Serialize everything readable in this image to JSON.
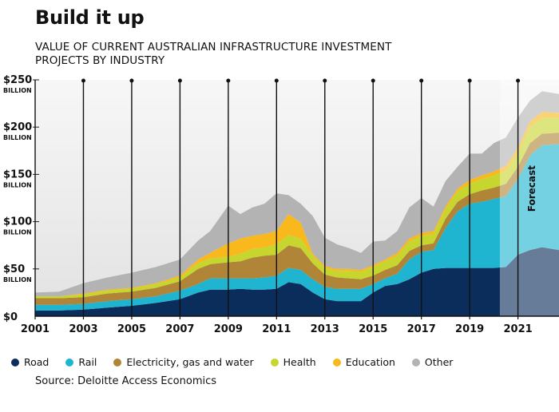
{
  "chart_data": {
    "type": "area",
    "stacked": true,
    "title": "Build it up",
    "subtitle": "VALUE OF CURRENT AUSTRALIAN INFRASTRUCTURE INVESTMENT PROJECTS BY INDUSTRY",
    "source": "Source: Deloitte Access Economics",
    "xlim": [
      2001,
      2022.7
    ],
    "ylim": [
      0,
      250
    ],
    "x_ticks": [
      "2001",
      "2003",
      "2005",
      "2007",
      "2009",
      "2011",
      "2013",
      "2015",
      "2017",
      "2019",
      "2021"
    ],
    "y_ticks": [
      {
        "value": 0,
        "label": "$0",
        "unit": ""
      },
      {
        "value": 50,
        "label": "$50",
        "unit": "BILLION"
      },
      {
        "value": 100,
        "label": "$100",
        "unit": "BILLION"
      },
      {
        "value": 150,
        "label": "$150",
        "unit": "BILLION"
      },
      {
        "value": 200,
        "label": "$200",
        "unit": "BILLION"
      },
      {
        "value": 250,
        "label": "$250",
        "unit": "BILLION"
      }
    ],
    "forecast_start": 2020.25,
    "forecast_label": "Forecast",
    "legend_position": "bottom",
    "x": [
      2001,
      2002,
      2003,
      2004,
      2005,
      2006,
      2007,
      2007.75,
      2008.25,
      2009,
      2009.5,
      2010,
      2010.5,
      2011,
      2011.5,
      2012,
      2012.5,
      2013,
      2013.5,
      2014,
      2014.5,
      2015,
      2015.5,
      2016,
      2016.5,
      2017,
      2017.5,
      2018,
      2018.5,
      2019,
      2019.5,
      2020,
      2020.5,
      2021,
      2021.5,
      2022,
      2022.7
    ],
    "series": [
      {
        "name": "Road",
        "color": "#0b2d5b",
        "values": [
          6,
          6,
          7,
          9,
          11,
          14,
          18,
          25,
          28,
          28,
          29,
          28,
          28,
          29,
          36,
          34,
          25,
          18,
          16,
          16,
          16,
          25,
          32,
          34,
          39,
          46,
          50,
          51,
          51,
          51,
          51,
          51,
          52,
          65,
          70,
          73,
          70
        ]
      },
      {
        "name": "Rail",
        "color": "#1fb5d1",
        "values": [
          6,
          6,
          6,
          7,
          7,
          7,
          9,
          9,
          12,
          12,
          11,
          12,
          13,
          14,
          15,
          15,
          14,
          13,
          13,
          13,
          13,
          9,
          8,
          11,
          21,
          22,
          20,
          42,
          60,
          68,
          70,
          73,
          75,
          80,
          100,
          108,
          112
        ]
      },
      {
        "name": "Electricity, gas and water",
        "color": "#b08537",
        "values": [
          7,
          7,
          7,
          8,
          8,
          9,
          10,
          16,
          15,
          17,
          18,
          22,
          23,
          22,
          24,
          23,
          17,
          13,
          12,
          11,
          10,
          9,
          9,
          9,
          9,
          7,
          7,
          10,
          10,
          10,
          12,
          12,
          13,
          13,
          13,
          12,
          12
        ]
      },
      {
        "name": "Health",
        "color": "#c7d62f",
        "values": [
          2,
          2,
          3,
          3,
          3,
          4,
          4,
          6,
          6,
          6,
          8,
          9,
          9,
          11,
          11,
          10,
          8,
          7,
          7,
          8,
          8,
          9,
          9,
          10,
          10,
          10,
          10,
          10,
          11,
          11,
          12,
          13,
          14,
          15,
          17,
          17,
          16
        ]
      },
      {
        "name": "Education",
        "color": "#f9b91c",
        "values": [
          0,
          0,
          1,
          1,
          1,
          1,
          2,
          4,
          6,
          14,
          16,
          14,
          14,
          14,
          22,
          17,
          2,
          2,
          2,
          2,
          2,
          2,
          2,
          3,
          3,
          3,
          3,
          3,
          3,
          4,
          4,
          4,
          5,
          5,
          6,
          6,
          5
        ]
      },
      {
        "name": "Other",
        "color": "#b3b3b3",
        "values": [
          4,
          5,
          11,
          13,
          16,
          17,
          17,
          20,
          23,
          40,
          26,
          30,
          32,
          40,
          20,
          20,
          40,
          30,
          26,
          22,
          18,
          25,
          20,
          23,
          33,
          37,
          26,
          27,
          23,
          28,
          23,
          30,
          30,
          32,
          22,
          22,
          20
        ]
      }
    ]
  }
}
